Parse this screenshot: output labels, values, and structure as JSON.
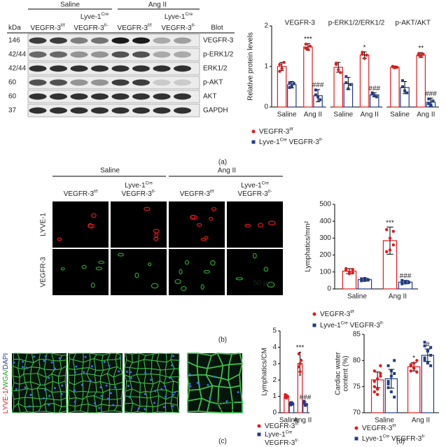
{
  "blot": {
    "conditions": [
      "Saline",
      "Ang II"
    ],
    "cre_labels": [
      [
        "Lyve-1",
        "Cre"
      ],
      [
        "Lyve-1",
        "Cre"
      ]
    ],
    "columns": [
      [
        "VEGFR-3",
        "f/f"
      ],
      [
        "VEGFR-3",
        "f/-"
      ],
      [
        "VEGFR-3",
        "f/f"
      ],
      [
        "VEGFR-3",
        "f/-"
      ]
    ],
    "kda_header": "kDa",
    "blot_header": "Blot",
    "rows": [
      {
        "kda": "146",
        "protein": "VEGFR-3"
      },
      {
        "kda": "42/44",
        "protein": "p-ERK1/2"
      },
      {
        "kda": "42/44",
        "protein": "ERK1/2"
      },
      {
        "kda": "60",
        "protein": "p-AKT"
      },
      {
        "kda": "60",
        "protein": "AKT"
      },
      {
        "kda": "37",
        "protein": "GAPDH"
      }
    ]
  },
  "panel_b_images": {
    "conditions": [
      "Saline",
      "Ang II"
    ],
    "columns": [
      [
        [
          "VEGFR-3",
          "f/f"
        ]
      ],
      [
        [
          "Lyve-1",
          "Cre"
        ],
        [
          "VEGFR-3",
          "f/-"
        ]
      ],
      [
        [
          "VEGFR-3",
          "f/f"
        ]
      ],
      [
        [
          "Lyve-1",
          "Cre"
        ],
        [
          "VEGFR-3",
          "f/-"
        ]
      ]
    ],
    "rows": [
      {
        "text": "LYVE-1",
        "color": "#e31a1c"
      },
      {
        "text": "VEGFR-3",
        "color": "#2ca02c"
      }
    ],
    "scale_bar": "50 μm"
  },
  "panel_c_images": {
    "stain_label": [
      {
        "text": "LYVE-1/",
        "color": "#e31a1c"
      },
      {
        "text": "WGA/",
        "color": "#2ca02c"
      },
      {
        "text": "DAPI",
        "color": "#1f3c88"
      }
    ],
    "scale_bar": "50 μm"
  },
  "panel_labels": [
    "(a)",
    "(b)",
    "(c)",
    "(d)"
  ],
  "chart_data": [
    {
      "type": "bar",
      "ylabel": "Relative protein levels",
      "ylim": [
        0,
        2
      ],
      "yticks": [
        0,
        1,
        2
      ],
      "groups": [
        "VEGFR-3",
        "p-ERK1/2/ERK1/2",
        "p-AKT/AKT"
      ],
      "categories": [
        "Saline",
        "Ang II"
      ],
      "series": [
        {
          "name": [
            "VEGFR-3",
            "f/f"
          ],
          "color": "#e31a1c",
          "marker": "circle",
          "values": [
            [
              1.0,
              1.48
            ],
            [
              0.98,
              1.28
            ],
            [
              0.98,
              1.28
            ]
          ],
          "errors": [
            [
              0.1,
              0.08
            ],
            [
              0.12,
              0.08
            ],
            [
              0.03,
              0.06
            ]
          ],
          "annotations": [
            [
              null,
              "***"
            ],
            [
              null,
              "*"
            ],
            [
              null,
              "**"
            ]
          ],
          "points": [
            [
              [
                1.05,
                0.95,
                1.1,
                0.88
              ],
              [
                1.55,
                1.42,
                1.5,
                1.45
              ]
            ],
            [
              [
                1.05,
                0.92,
                0.85,
                1.08
              ],
              [
                1.35,
                1.2,
                1.28,
                1.3
              ]
            ],
            [
              [
                1.0,
                0.97,
                0.98,
                1.0
              ],
              [
                1.32,
                1.25,
                1.3,
                1.28
              ]
            ]
          ]
        },
        {
          "name": [
            "Lyve-1",
            "Cre",
            " VEGFR-3",
            "f/-"
          ],
          "color": "#1f3c88",
          "marker": "square",
          "values": [
            [
              0.55,
              0.28
            ],
            [
              0.58,
              0.3
            ],
            [
              0.48,
              0.12
            ]
          ],
          "errors": [
            [
              0.08,
              0.15
            ],
            [
              0.15,
              0.05
            ],
            [
              0.15,
              0.1
            ]
          ],
          "annotations": [
            [
              null,
              "###"
            ],
            [
              null,
              "###"
            ],
            [
              null,
              "###"
            ]
          ],
          "points": [
            [
              [
                0.6,
                0.5,
                0.58,
                0.48
              ],
              [
                0.42,
                0.25,
                0.18,
                0.3
              ]
            ],
            [
              [
                0.75,
                0.45,
                0.55,
                0.6
              ],
              [
                0.35,
                0.28,
                0.25,
                0.32
              ]
            ],
            [
              [
                0.65,
                0.4,
                0.35,
                0.5
              ],
              [
                0.2,
                0.05,
                0.15,
                0.08
              ]
            ]
          ]
        }
      ]
    },
    {
      "type": "bar",
      "ylabel": "Lymphatics/mm²",
      "ylim": [
        0,
        500
      ],
      "yticks": [
        0,
        100,
        200,
        300,
        400,
        500
      ],
      "categories": [
        "Saline",
        "Ang II"
      ],
      "series": [
        {
          "name": [
            "VEGFR-3",
            "f/f"
          ],
          "color": "#e31a1c",
          "marker": "circle",
          "values": [
            105,
            285
          ],
          "errors": [
            15,
            80
          ],
          "annotations": [
            null,
            "***"
          ],
          "points": [
            [
              120,
              100,
              95,
              110,
              90,
              115
            ],
            [
              350,
              300,
              260,
              220,
              230,
              340
            ]
          ]
        },
        {
          "name": [
            "Lyve-1",
            "Cre",
            " VEGFR-3",
            "f/-"
          ],
          "color": "#1f3c88",
          "marker": "square",
          "values": [
            55,
            40
          ],
          "errors": [
            8,
            10
          ],
          "annotations": [
            null,
            "###"
          ],
          "points": [
            [
              60,
              50,
              55,
              48,
              62,
              52
            ],
            [
              50,
              35,
              40,
              30,
              45,
              38
            ]
          ]
        }
      ]
    },
    {
      "type": "bar",
      "ylabel": "Lymphatics/CM",
      "ylim": [
        0,
        5
      ],
      "yticks": [
        0,
        1,
        2,
        3,
        4,
        5
      ],
      "categories": [
        "Saline",
        "Ang II"
      ],
      "series": [
        {
          "name": [
            "VEGFR-3",
            "f/f"
          ],
          "color": "#e31a1c",
          "marker": "circle",
          "values": [
            1.0,
            3.0
          ],
          "errors": [
            0.1,
            0.7
          ],
          "annotations": [
            null,
            "***"
          ],
          "points": [
            [
              1.1,
              0.9,
              1.0,
              0.95,
              1.05
            ],
            [
              3.6,
              2.5,
              3.2,
              2.8,
              3.0
            ]
          ]
        },
        {
          "name": [
            "Lyve-1",
            "Cre",
            "VEGFR-3",
            "f/-"
          ],
          "color": "#1f3c88",
          "marker": "square",
          "values": [
            0.55,
            0.55
          ],
          "errors": [
            0.08,
            0.12
          ],
          "annotations": [
            null,
            "###"
          ],
          "points": [
            [
              0.6,
              0.5,
              0.55,
              0.48,
              0.62
            ],
            [
              0.7,
              0.45,
              0.5,
              0.6,
              0.5
            ]
          ]
        }
      ]
    },
    {
      "type": "bar",
      "ylabel": [
        "Cardiac water",
        "content (%)"
      ],
      "ylim": [
        70,
        85
      ],
      "yticks": [
        70,
        75,
        80,
        85
      ],
      "categories": [
        "Saline",
        "Ang II"
      ],
      "series": [
        {
          "name": [
            "VEGFR-3",
            "f/f"
          ],
          "color": "#e31a1c",
          "marker": "circle",
          "values": [
            76.3,
            78.8
          ],
          "errors": [
            1.5,
            0.8
          ],
          "annotations": [
            null,
            "*"
          ],
          "points": [
            [
              78,
              74.5,
              77,
              76,
              73.5,
              79,
              75,
              76.5,
              77.5,
              74
            ],
            [
              79,
              78.5,
              80,
              78,
              79.5,
              77.8,
              79.2,
              78.6
            ]
          ]
        },
        {
          "name": [
            "Lyve-1",
            "Cre",
            " VEGFR-3",
            "f/-"
          ],
          "color": "#1f3c88",
          "marker": "square",
          "values": [
            76.5,
            81.0
          ],
          "errors": [
            1.8,
            1.2
          ],
          "annotations": [
            null,
            "#"
          ],
          "points": [
            [
              79,
              74,
              77.5,
              76,
              78,
              73,
              75.5,
              77,
              80,
              74.8
            ],
            [
              83.5,
              82,
              81,
              80,
              79.5,
              82.5,
              80.5,
              81.8,
              79,
              82.8
            ]
          ]
        }
      ]
    }
  ]
}
